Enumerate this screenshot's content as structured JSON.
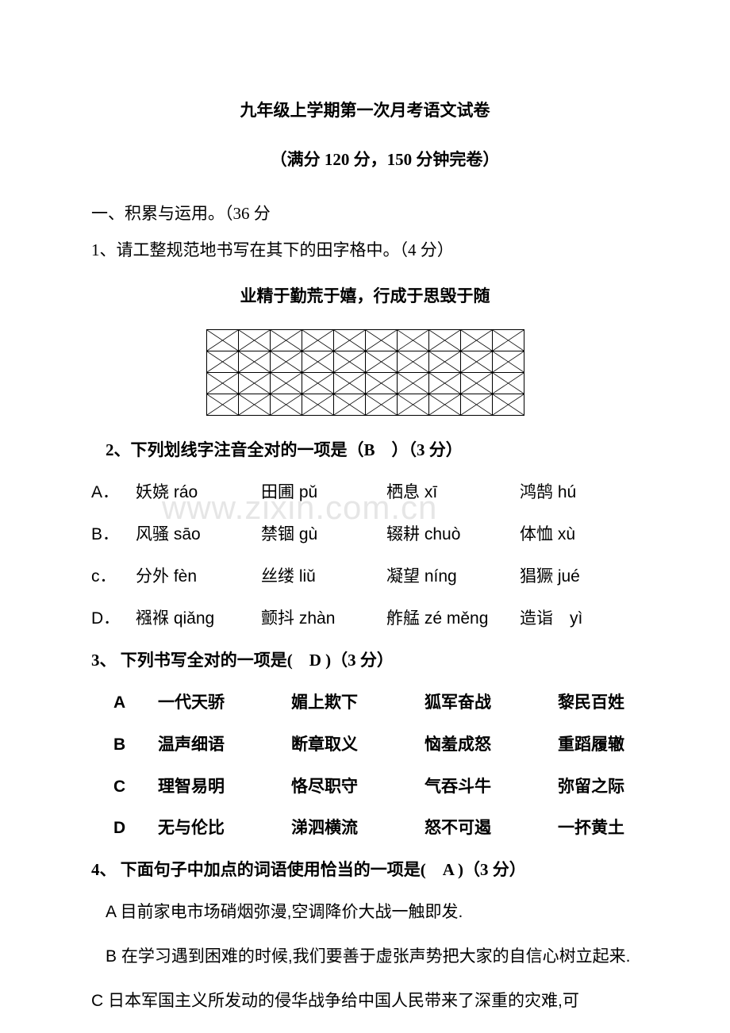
{
  "watermark": "www.zixin.com.cn",
  "title": "九年级上学期第一次月考语文试卷",
  "subtitle": "（满分 120 分，150 分钟完卷）",
  "section1": "一、积累与运用。（36 分",
  "q1": "1、请工整规范地书写在其下的田字格中。（4 分）",
  "motto": "业精于勤荒于嬉，行成于思毁于随",
  "grid": {
    "rows": 4,
    "cols": 10
  },
  "q2": {
    "stem": "2、下列划线字注音全对的一项是（B　）（3 分）",
    "options": [
      {
        "label": "A．",
        "items": [
          "妖娆 ráo",
          "田圃 pǔ",
          "栖息 xī",
          "鸿鹄  hú"
        ]
      },
      {
        "label": "B．",
        "items": [
          "风骚 sāo",
          "禁锢 gù",
          "辍耕  chuò",
          "体恤 xù"
        ]
      },
      {
        "label": "c．",
        "items": [
          "分外 fèn",
          "丝缕 liǔ",
          "凝望 níng",
          "猖獗  jué"
        ]
      },
      {
        "label": "D．",
        "items": [
          "襁褓 qiǎng",
          "颤抖 zhàn",
          "舴艋 zé  měng",
          "造诣　yì"
        ]
      }
    ]
  },
  "q3": {
    "stem": "3、  下列书写全对的一项是(　D )（3 分）",
    "options": [
      {
        "label": "A",
        "items": [
          "一代天骄",
          "媚上欺下",
          "狐军奋战",
          "黎民百姓"
        ]
      },
      {
        "label": "B",
        "items": [
          "温声细语",
          "断章取义",
          "恼羞成怒",
          "重蹈履辙"
        ]
      },
      {
        "label": "C",
        "items": [
          "理智易明",
          "恪尽职守",
          "气吞斗牛",
          "弥留之际"
        ]
      },
      {
        "label": "D",
        "items": [
          "无与伦比",
          "涕泗横流",
          "怒不可遏",
          "一抔黄土"
        ]
      }
    ]
  },
  "q4": {
    "stem": "4、  下面句子中加点的词语使用恰当的一项是(　A )（3 分）",
    "optA": "A  目前家电市场硝烟弥漫,空调降价大战一触即发.",
    "optB": "B  在学习遇到困难的时候,我们要善于虚张声势把大家的自信心树立起来.",
    "optC": "C  日本军国主义所发动的侵华战争给中国人民带来了深重的灾难,可"
  }
}
